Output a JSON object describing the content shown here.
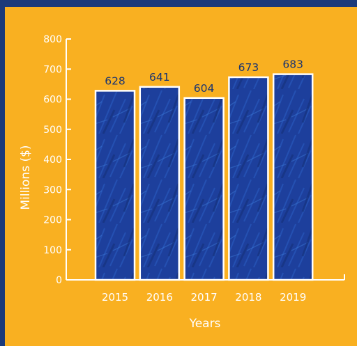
{
  "colors": {
    "frame": "#1c3a7a",
    "panel": "#f9b021",
    "bar_fill": "#1d3f9c",
    "bar_stroke": "#ffffff",
    "axis": "#ffffff",
    "value_label": "#1a3470"
  },
  "chart_data": {
    "type": "bar",
    "categories": [
      "2015",
      "2016",
      "2017",
      "2018",
      "2019"
    ],
    "values": [
      628,
      641,
      604,
      673,
      683
    ],
    "data_labels": [
      "628",
      "641",
      "604",
      "673",
      "683"
    ],
    "xlabel": "Years",
    "ylabel": "Millions ($)",
    "ylim": [
      0,
      800
    ],
    "yticks": [
      0,
      100,
      200,
      300,
      400,
      500,
      600,
      700,
      800
    ],
    "ytick_labels": [
      "0",
      "100",
      "200",
      "300",
      "400",
      "500",
      "600",
      "700",
      "800"
    ],
    "grid": false,
    "legend": "none"
  }
}
